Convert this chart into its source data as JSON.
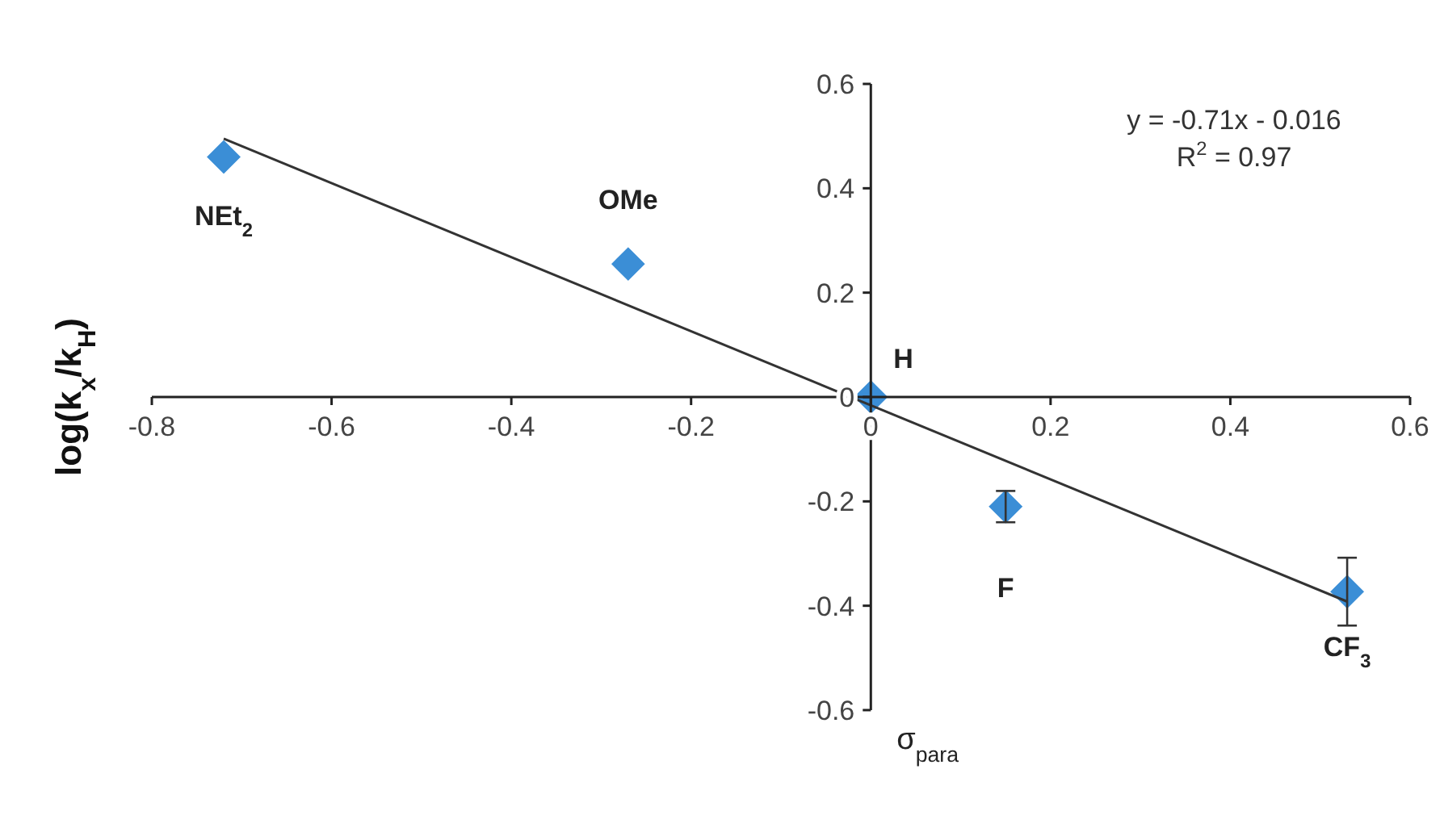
{
  "chart_data": {
    "type": "scatter",
    "ylabel": "log(k$_{x}$/k$_{H}$)",
    "xlabel": "σ$_{para}$",
    "xlim": [
      -0.8,
      0.6
    ],
    "xticks": [
      -0.8,
      -0.6,
      -0.4,
      -0.2,
      0,
      0.2,
      0.4,
      0.6
    ],
    "ylim": [
      -0.6,
      0.6
    ],
    "yticks": [
      -0.6,
      -0.4,
      -0.2,
      0,
      0.2,
      0.4,
      0.6
    ],
    "grid": false,
    "series": [
      {
        "color": "#3b8ed6",
        "marker": "diamond",
        "x": [
          -0.72,
          -0.27,
          0,
          0.15,
          0.53
        ],
        "values": [
          0.46,
          0.255,
          0,
          -0.21,
          -0.373
        ],
        "errors": [
          null,
          null,
          null,
          0.03,
          0.065
        ]
      },
      {
        "type": "line",
        "color": "#333333",
        "x": [
          -0.72,
          0.53
        ],
        "values": [
          0.495,
          -0.392
        ]
      }
    ],
    "annotations": [
      {
        "text": "NEt$_{2}$",
        "x": -0.72,
        "y": 0.46
      },
      {
        "text": "OMe",
        "x": -0.27,
        "y": 0.255
      },
      {
        "text": "H",
        "x": 0,
        "y": 0
      },
      {
        "text": "F",
        "x": 0.15,
        "y": -0.21
      },
      {
        "text": "CF$_{3}$",
        "x": 0.53,
        "y": -0.373
      },
      "y = -0.71x - 0.016",
      "R$^{2}$ = 0.97"
    ]
  }
}
